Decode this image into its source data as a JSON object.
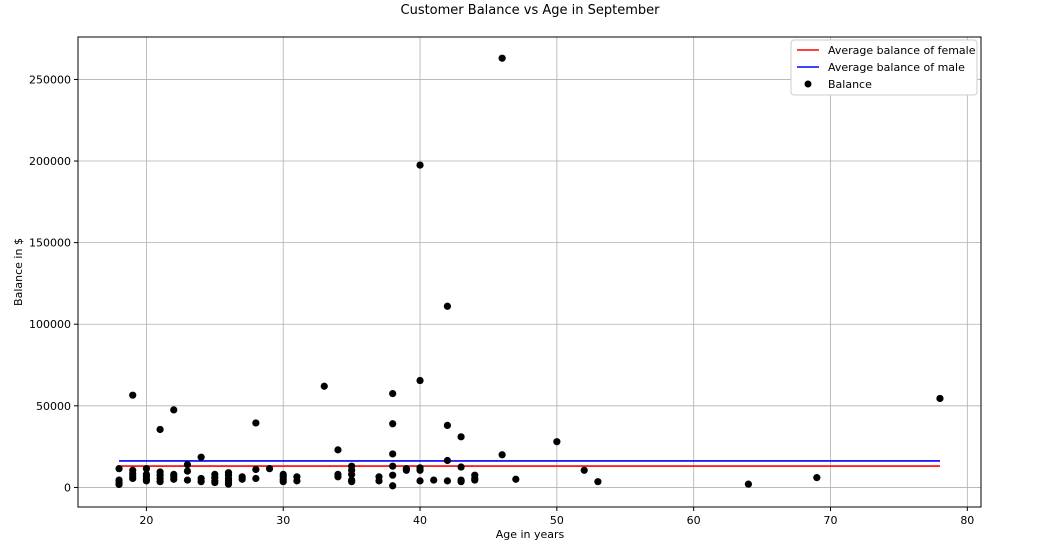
{
  "chart_data": {
    "type": "scatter",
    "title": "Customer Balance vs Age in September",
    "xlabel": "Age in years",
    "ylabel": "Balance in $",
    "xlim": [
      15,
      81
    ],
    "ylim": [
      -12000,
      276000
    ],
    "xticks": [
      20,
      30,
      40,
      50,
      60,
      70,
      80
    ],
    "yticks": [
      0,
      50000,
      100000,
      150000,
      200000,
      250000
    ],
    "grid": true,
    "legend_position": "top-right",
    "colors": {
      "female": "#ff0000",
      "male": "#0000ff",
      "balance": "#000000"
    },
    "series": [
      {
        "name": "Average balance of female",
        "kind": "line",
        "x": [
          18,
          78
        ],
        "y": [
          13100,
          13100
        ]
      },
      {
        "name": "Average balance of male",
        "kind": "line",
        "x": [
          18,
          78
        ],
        "y": [
          16200,
          16200
        ]
      },
      {
        "name": "Balance",
        "kind": "scatter",
        "points": [
          [
            18,
            11500
          ],
          [
            18,
            4500
          ],
          [
            18,
            3000
          ],
          [
            18,
            1800
          ],
          [
            19,
            56500
          ],
          [
            19,
            10500
          ],
          [
            19,
            8500
          ],
          [
            19,
            7000
          ],
          [
            19,
            5500
          ],
          [
            20,
            11500
          ],
          [
            20,
            8000
          ],
          [
            20,
            6500
          ],
          [
            20,
            5000
          ],
          [
            20,
            4000
          ],
          [
            21,
            35500
          ],
          [
            21,
            9500
          ],
          [
            21,
            7500
          ],
          [
            21,
            5500
          ],
          [
            21,
            3500
          ],
          [
            22,
            47500
          ],
          [
            22,
            8000
          ],
          [
            22,
            6500
          ],
          [
            22,
            5000
          ],
          [
            23,
            14000
          ],
          [
            23,
            10000
          ],
          [
            23,
            4500
          ],
          [
            24,
            18500
          ],
          [
            24,
            5500
          ],
          [
            24,
            3500
          ],
          [
            25,
            8000
          ],
          [
            25,
            6000
          ],
          [
            25,
            4000
          ],
          [
            25,
            3000
          ],
          [
            26,
            9000
          ],
          [
            26,
            7500
          ],
          [
            26,
            5500
          ],
          [
            26,
            4500
          ],
          [
            26,
            3000
          ],
          [
            26,
            2000
          ],
          [
            27,
            6500
          ],
          [
            27,
            5000
          ],
          [
            28,
            39500
          ],
          [
            28,
            11000
          ],
          [
            28,
            5500
          ],
          [
            29,
            11500
          ],
          [
            30,
            8000
          ],
          [
            30,
            6500
          ],
          [
            30,
            5000
          ],
          [
            30,
            3500
          ],
          [
            31,
            6500
          ],
          [
            31,
            4000
          ],
          [
            33,
            62000
          ],
          [
            34,
            23000
          ],
          [
            34,
            8000
          ],
          [
            34,
            6500
          ],
          [
            35,
            13000
          ],
          [
            35,
            10500
          ],
          [
            35,
            8000
          ],
          [
            35,
            4500
          ],
          [
            35,
            3500
          ],
          [
            37,
            6500
          ],
          [
            37,
            4000
          ],
          [
            38,
            57500
          ],
          [
            38,
            39000
          ],
          [
            38,
            20500
          ],
          [
            38,
            13000
          ],
          [
            38,
            7500
          ],
          [
            38,
            1000
          ],
          [
            39,
            11500
          ],
          [
            39,
            10500
          ],
          [
            40,
            197500
          ],
          [
            40,
            65500
          ],
          [
            40,
            12000
          ],
          [
            40,
            10500
          ],
          [
            40,
            4000
          ],
          [
            41,
            4500
          ],
          [
            42,
            111000
          ],
          [
            42,
            38000
          ],
          [
            42,
            16500
          ],
          [
            42,
            4000
          ],
          [
            43,
            31000
          ],
          [
            43,
            12500
          ],
          [
            43,
            4500
          ],
          [
            43,
            3500
          ],
          [
            44,
            7500
          ],
          [
            44,
            5500
          ],
          [
            44,
            4500
          ],
          [
            46,
            263000
          ],
          [
            46,
            20000
          ],
          [
            47,
            5000
          ],
          [
            50,
            28000
          ],
          [
            52,
            10500
          ],
          [
            53,
            3500
          ],
          [
            64,
            2000
          ],
          [
            69,
            6000
          ],
          [
            78,
            54500
          ]
        ]
      }
    ]
  }
}
